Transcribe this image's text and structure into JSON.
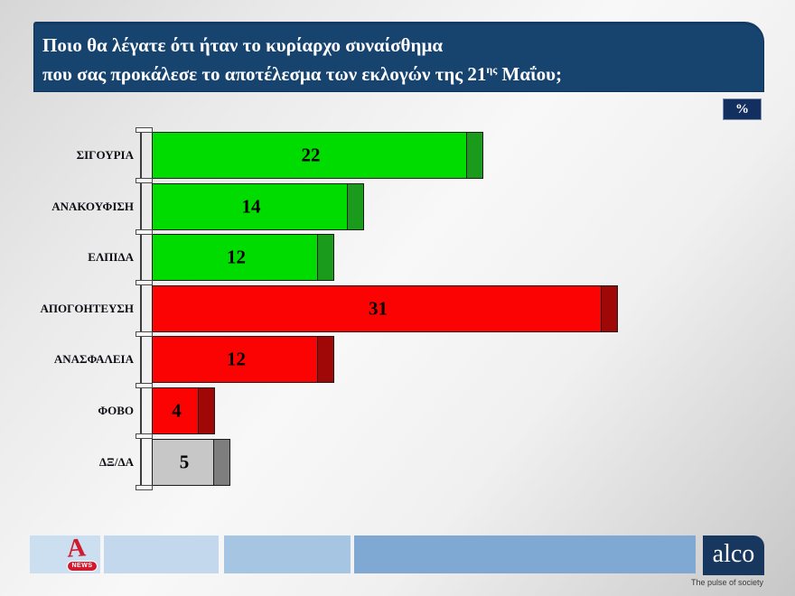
{
  "title": {
    "line1": "Ποιο θα λέγατε ότι ήταν το κυρίαρχο συναίσθημα",
    "line2_text": "που σας προκάλεσε το αποτέλεσμα των εκλογών της 21",
    "line2_sup": "ης",
    "line2_end": " Μαΐου;"
  },
  "unit_label": "%",
  "chart_data": {
    "type": "bar",
    "orientation": "horizontal",
    "title": "Ποιο θα λέγατε ότι ήταν το κυρίαρχο συναίσθημα που σας προκάλεσε το αποτέλεσμα των εκλογών της 21ης Μαΐου;",
    "unit": "%",
    "categories": [
      "ΣΙΓΟΥΡΙΑ",
      "ΑΝΑΚΟΥΦΙΣΗ",
      "ΕΛΠΙΔΑ",
      "ΑΠΟΓΟΗΤΕΥΣΗ",
      "ΑΝΑΣΦΑΛΕΙΑ",
      "ΦΟΒΟ",
      "ΔΞ/ΔΑ"
    ],
    "values": [
      22,
      14,
      12,
      31,
      12,
      4,
      5
    ],
    "bar_colors": [
      {
        "fill": "#00dc00",
        "cap": "#1b9b1b"
      },
      {
        "fill": "#00dc00",
        "cap": "#1b9b1b"
      },
      {
        "fill": "#00dc00",
        "cap": "#1b9b1b"
      },
      {
        "fill": "#fb0303",
        "cap": "#a00707"
      },
      {
        "fill": "#fb0303",
        "cap": "#a00707"
      },
      {
        "fill": "#fb0303",
        "cap": "#a00707"
      },
      {
        "fill": "#c7c7c7",
        "cap": "#7e7e7e"
      }
    ],
    "value_labels_shown": true,
    "gridlines": false,
    "legend": "none",
    "xlim": [
      0,
      35
    ]
  },
  "footer": {
    "alpha_logo": {
      "letter": "A",
      "badge": "NEWS"
    },
    "alco": {
      "wordmark": "alco",
      "tagline": "The pulse of society"
    }
  }
}
